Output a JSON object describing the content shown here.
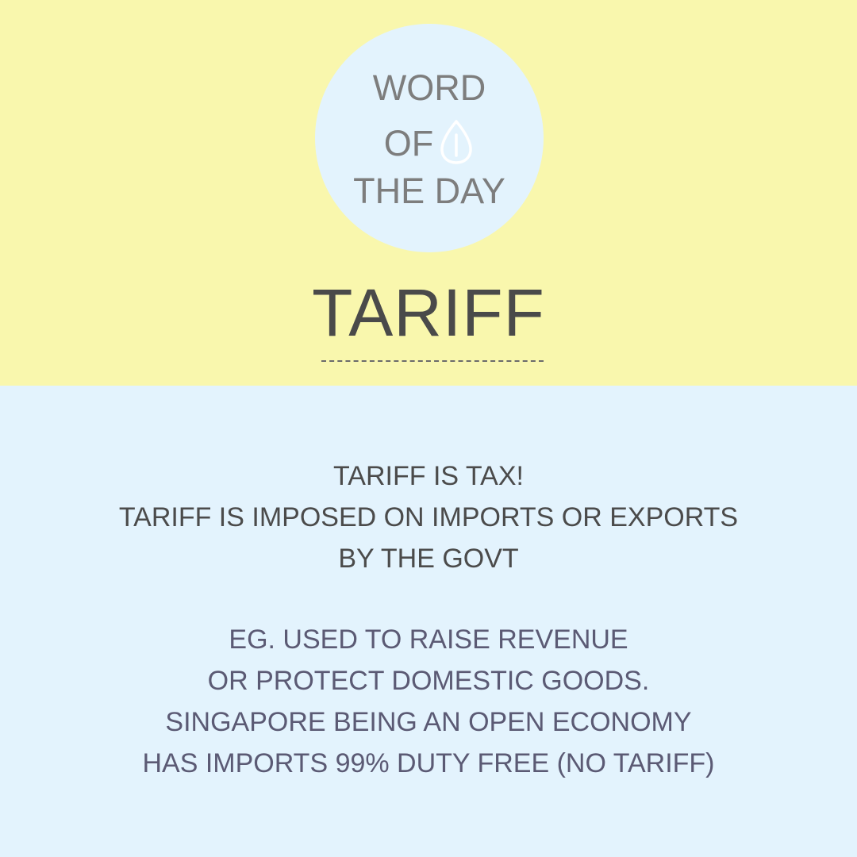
{
  "badge": {
    "line1": "WORD",
    "line2": "OF",
    "line3": "THE DAY",
    "icon": "seed-icon"
  },
  "headword": "TARIFF",
  "definition": {
    "lines": [
      "TARIFF IS TAX!",
      "TARIFF IS IMPOSED ON IMPORTS OR EXPORTS",
      "BY THE GOVT"
    ]
  },
  "example": {
    "lines": [
      "EG. USED TO RAISE REVENUE",
      "OR PROTECT DOMESTIC GOODS.",
      "SINGAPORE BEING AN OPEN ECONOMY",
      "HAS IMPORTS 99% DUTY FREE (NO TARIFF)"
    ]
  },
  "colors": {
    "top_background": "#f9f7ad",
    "bottom_background": "#e3f3fd",
    "badge_text": "#7d7d7d",
    "headword_text": "#4a4a4a",
    "example_text": "#5b5a74"
  }
}
